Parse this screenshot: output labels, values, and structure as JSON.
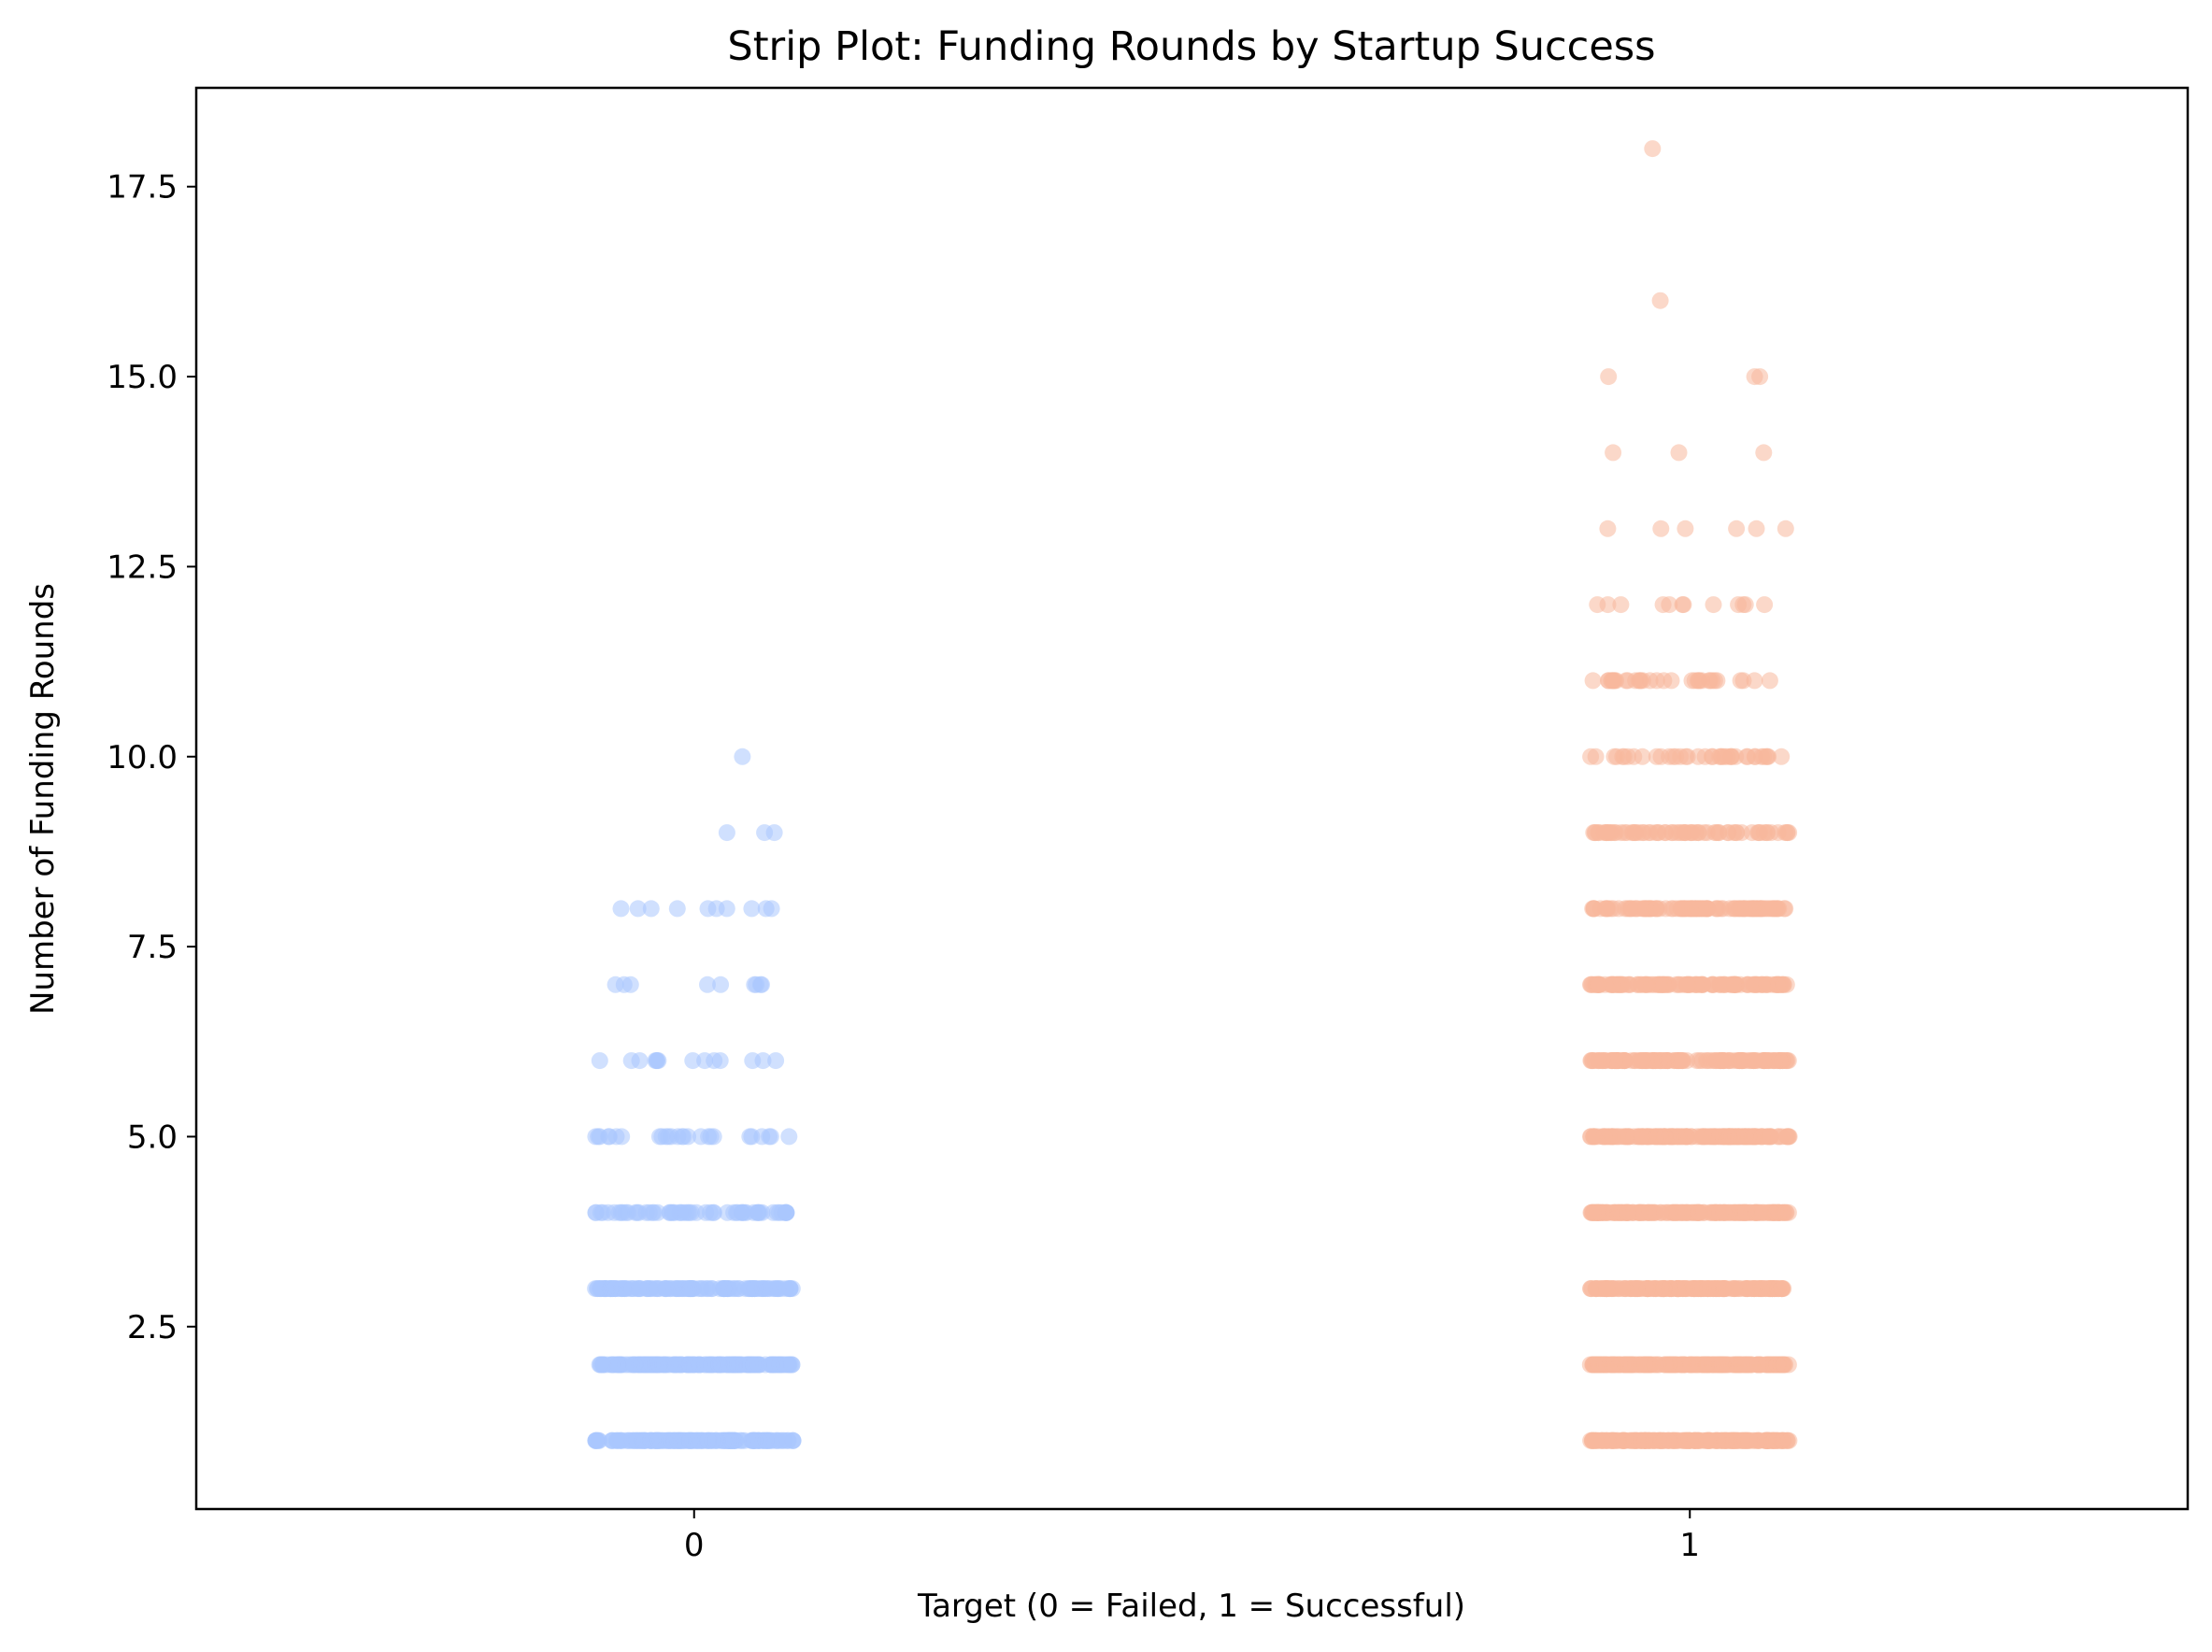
{
  "chart_data": {
    "type": "scatter",
    "subtype": "strip",
    "title": "Strip Plot: Funding Rounds by Startup Success",
    "xlabel": "Target (0 = Failed, 1 = Successful)",
    "ylabel": "Number of Funding Rounds",
    "categories": [
      "0",
      "1"
    ],
    "yticks": [
      "2.5",
      "5.0",
      "7.5",
      "10.0",
      "12.5",
      "15.0",
      "17.5"
    ],
    "ylim": [
      0.1,
      18.8
    ],
    "xlim": [
      -0.5,
      1.5
    ],
    "grid": false,
    "legend": "none",
    "series": [
      {
        "category": "0",
        "color": "#aac7fd",
        "points": [
          {
            "y": 1,
            "count": 160
          },
          {
            "y": 2,
            "count": 150
          },
          {
            "y": 3,
            "count": 120
          },
          {
            "y": 4,
            "count": 60
          },
          {
            "y": 5,
            "count": 26
          },
          {
            "y": 6,
            "count": 14
          },
          {
            "y": 7,
            "count": 9
          },
          {
            "y": 8,
            "count": 10
          },
          {
            "y": 9,
            "count": 3
          },
          {
            "y": 10,
            "count": 1
          }
        ]
      },
      {
        "category": "1",
        "color": "#f7b89c",
        "points": [
          {
            "y": 1,
            "count": 200
          },
          {
            "y": 2,
            "count": 200
          },
          {
            "y": 3,
            "count": 190
          },
          {
            "y": 4,
            "count": 180
          },
          {
            "y": 5,
            "count": 160
          },
          {
            "y": 6,
            "count": 150
          },
          {
            "y": 7,
            "count": 130
          },
          {
            "y": 8,
            "count": 110
          },
          {
            "y": 9,
            "count": 70
          },
          {
            "y": 10,
            "count": 40
          },
          {
            "y": 11,
            "count": 35
          },
          {
            "y": 12,
            "count": 12
          },
          {
            "y": 13,
            "count": 6
          },
          {
            "y": 14,
            "count": 3
          },
          {
            "y": 15,
            "count": 3
          },
          {
            "y": 16,
            "count": 1
          },
          {
            "y": 18,
            "count": 1
          }
        ]
      }
    ]
  }
}
